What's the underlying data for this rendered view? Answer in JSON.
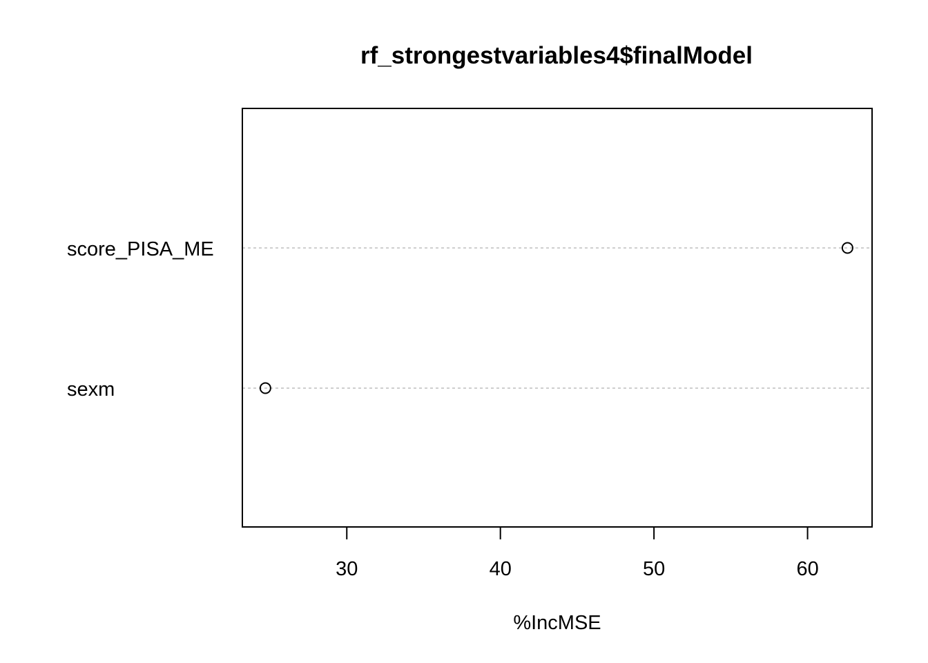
{
  "chart_data": {
    "type": "scatter",
    "title": "rf_strongestvariables4$finalModel",
    "xlabel": "%IncMSE",
    "ylabel": "",
    "xlim": [
      23.2,
      64.2
    ],
    "xticks": [
      30,
      40,
      50,
      60
    ],
    "xtick_labels": [
      "30",
      "40",
      "50",
      "60"
    ],
    "categories": [
      "score_PISA_ME",
      "sexm"
    ],
    "values": [
      62.6,
      24.7
    ],
    "grid": "dashed horizontal guide lines per variable",
    "colors": {
      "point": "#000000",
      "guide": "#bebebe",
      "frame": "#000000"
    }
  }
}
